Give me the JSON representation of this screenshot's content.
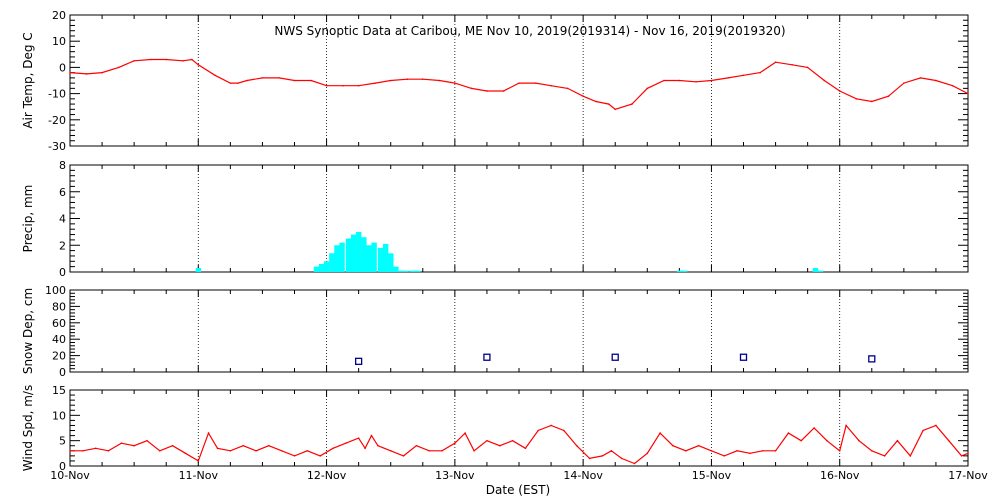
{
  "chart_data": {
    "type": "line",
    "title": "NWS Synoptic Data at Caribou, ME    Nov 10, 2019(2019314) - Nov 16, 2019(2019320)",
    "xlabel": "Date (EST)",
    "x_ticks": [
      "10-Nov",
      "11-Nov",
      "12-Nov",
      "13-Nov",
      "14-Nov",
      "15-Nov",
      "16-Nov",
      "17-Nov"
    ],
    "x_range_days": [
      0,
      7
    ],
    "grid": "dotted vertical lines at each day",
    "panels": [
      {
        "id": "temp",
        "type": "line",
        "ylabel": "Air Temp, Deg C",
        "ylim": [
          -30,
          20
        ],
        "yticks": [
          "20",
          "10",
          "0",
          "-10",
          "-20",
          "-30"
        ],
        "color": "#ff0000",
        "x": [
          0.0,
          0.13,
          0.25,
          0.38,
          0.5,
          0.63,
          0.75,
          0.88,
          0.95,
          1.0,
          1.13,
          1.25,
          1.31,
          1.38,
          1.5,
          1.63,
          1.75,
          1.88,
          2.0,
          2.13,
          2.25,
          2.38,
          2.5,
          2.63,
          2.75,
          2.88,
          3.0,
          3.13,
          3.25,
          3.38,
          3.5,
          3.63,
          3.75,
          3.88,
          4.0,
          4.1,
          4.2,
          4.25,
          4.38,
          4.5,
          4.63,
          4.75,
          4.88,
          5.0,
          5.13,
          5.25,
          5.38,
          5.5,
          5.63,
          5.75,
          5.88,
          6.0,
          6.13,
          6.25,
          6.38,
          6.5,
          6.63,
          6.75,
          6.88,
          7.0
        ],
        "values": [
          -2,
          -2.5,
          -2,
          0,
          2.5,
          3,
          3,
          2.5,
          3,
          1,
          -3,
          -6,
          -6,
          -5,
          -4,
          -4,
          -5,
          -5,
          -7,
          -7,
          -7,
          -6,
          -5,
          -4.5,
          -4.5,
          -5,
          -6,
          -8,
          -9,
          -9,
          -6,
          -6,
          -7,
          -8,
          -11,
          -13,
          -14,
          -16,
          -14,
          -8,
          -5,
          -5,
          -5.5,
          -5,
          -4,
          -3,
          -2,
          2,
          1,
          0,
          -5,
          -9,
          -12,
          -13,
          -11,
          -6,
          -4,
          -5,
          -7,
          -10
        ]
      },
      {
        "id": "precip",
        "type": "bar",
        "ylabel": "Precip, mm",
        "ylim": [
          0,
          8
        ],
        "yticks": [
          "8",
          "6",
          "4",
          "2",
          "0"
        ],
        "color": "#00ffff",
        "bar_width_days": 0.0417,
        "x": [
          0.98,
          1.9,
          1.94,
          1.98,
          2.02,
          2.06,
          2.1,
          2.15,
          2.19,
          2.23,
          2.27,
          2.31,
          2.35,
          2.4,
          2.44,
          2.48,
          2.52,
          2.56,
          2.6,
          2.65,
          2.69,
          4.73,
          4.77,
          5.79,
          5.83
        ],
        "values": [
          0.3,
          0.4,
          0.6,
          0.8,
          1.4,
          2.0,
          2.2,
          2.5,
          2.8,
          3.0,
          2.6,
          2.0,
          2.2,
          1.8,
          2.1,
          1.4,
          0.4,
          0.1,
          0.1,
          0.1,
          0.1,
          0.1,
          0.1,
          0.3,
          0.1
        ]
      },
      {
        "id": "snow",
        "type": "scatter",
        "ylabel": "Snow Dep, cm",
        "ylim": [
          0,
          100
        ],
        "yticks": [
          "100",
          "80",
          "60",
          "40",
          "20",
          "0"
        ],
        "color": "#00008b",
        "x": [
          2.25,
          3.25,
          4.25,
          5.25,
          6.25
        ],
        "values": [
          13,
          18,
          18,
          18,
          16
        ]
      },
      {
        "id": "wind",
        "type": "line",
        "ylabel": "Wind Spd, m/s",
        "ylim": [
          0,
          15
        ],
        "yticks": [
          "15",
          "10",
          "5",
          "0"
        ],
        "color": "#ff0000",
        "x": [
          0.0,
          0.1,
          0.2,
          0.3,
          0.4,
          0.5,
          0.6,
          0.7,
          0.8,
          0.9,
          1.0,
          1.08,
          1.15,
          1.25,
          1.35,
          1.45,
          1.55,
          1.65,
          1.75,
          1.85,
          1.95,
          2.05,
          2.15,
          2.25,
          2.3,
          2.35,
          2.4,
          2.5,
          2.6,
          2.7,
          2.8,
          2.9,
          3.0,
          3.08,
          3.15,
          3.25,
          3.35,
          3.45,
          3.55,
          3.65,
          3.75,
          3.85,
          3.95,
          4.05,
          4.15,
          4.22,
          4.3,
          4.4,
          4.5,
          4.6,
          4.7,
          4.8,
          4.9,
          5.0,
          5.1,
          5.2,
          5.3,
          5.4,
          5.5,
          5.6,
          5.7,
          5.8,
          5.9,
          6.0,
          6.05,
          6.15,
          6.25,
          6.35,
          6.45,
          6.55,
          6.65,
          6.75,
          6.85,
          6.95,
          7.0
        ],
        "values": [
          3,
          3,
          3.5,
          3,
          4.5,
          4,
          5,
          3,
          4,
          2.5,
          1,
          6.5,
          3.5,
          3,
          4,
          3,
          4,
          3,
          2,
          3,
          2,
          3.5,
          4.5,
          5.5,
          3.5,
          6,
          4,
          3,
          2,
          4,
          3,
          3,
          4.5,
          6.5,
          3,
          5,
          4,
          5,
          3.5,
          7,
          8,
          7,
          4,
          1.5,
          2,
          3,
          1.5,
          0.5,
          2.5,
          6.5,
          4,
          3,
          4,
          3,
          2,
          3,
          2.5,
          3,
          3,
          6.5,
          5,
          7.5,
          5,
          3,
          8,
          5,
          3,
          2,
          5,
          2,
          7,
          8,
          5,
          2,
          2.5
        ]
      }
    ]
  }
}
